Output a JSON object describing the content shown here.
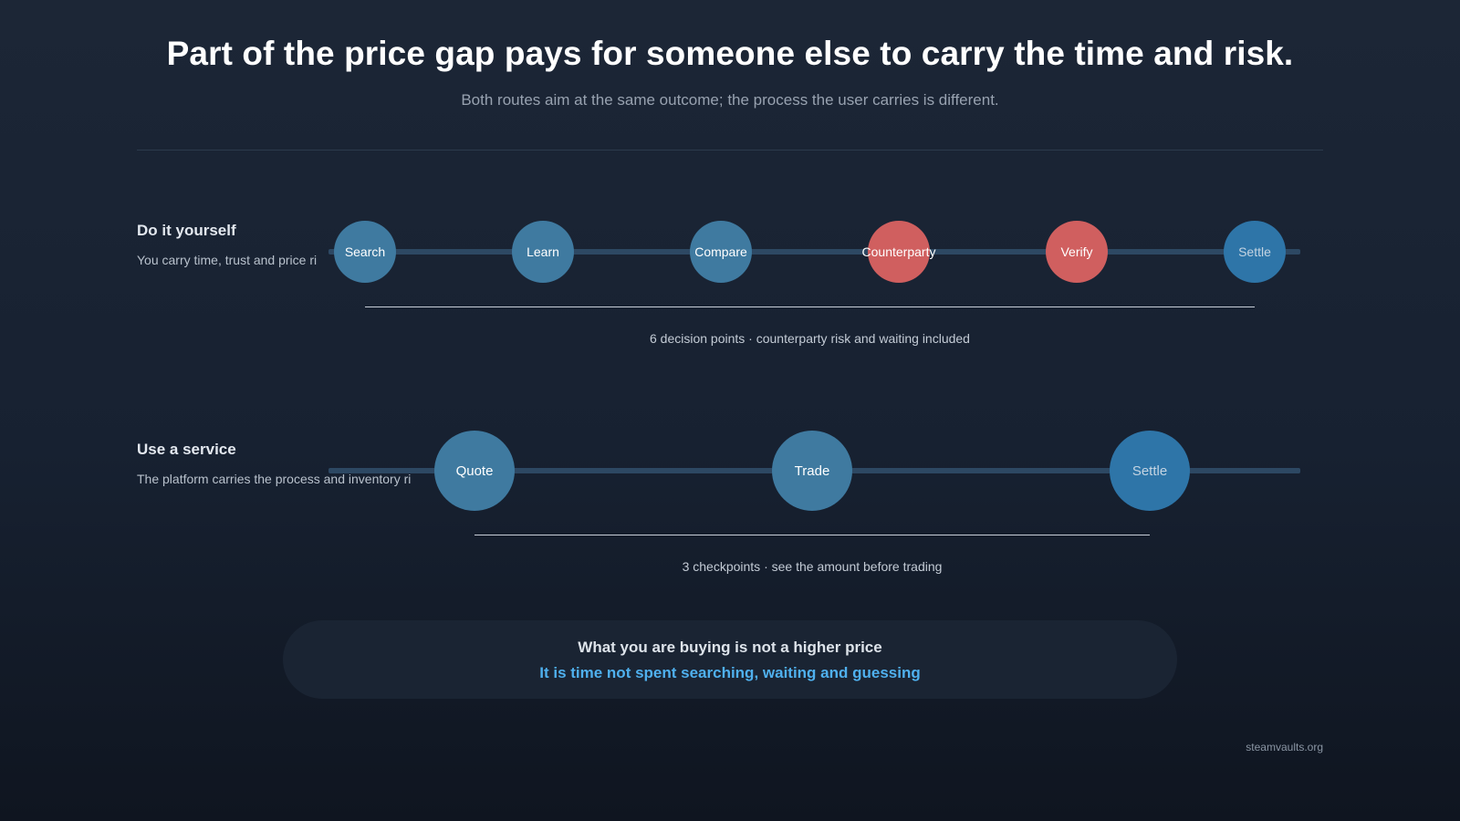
{
  "headline": "Part of the price gap pays for someone else to carry the time and risk.",
  "subheadline": "Both routes aim at the same outcome; the process the user carries is different.",
  "routes": [
    {
      "label": "Do it yourself",
      "description": "You carry time, trust and price ri",
      "steps": [
        {
          "label": "Search",
          "color": "#3f7aa0"
        },
        {
          "label": "Learn",
          "color": "#3f7aa0"
        },
        {
          "label": "Compare",
          "color": "#3f7aa0"
        },
        {
          "label": "Counterparty",
          "color": "#d05f5f"
        },
        {
          "label": "Verify",
          "color": "#d05f5f"
        },
        {
          "label": "Settle",
          "color": "#2e75a8"
        }
      ],
      "summary": "6 decision points · counterparty risk and waiting included"
    },
    {
      "label": "Use a service",
      "description": "The platform carries the process and inventory ri",
      "steps": [
        {
          "label": "Quote",
          "color": "#3f7aa0"
        },
        {
          "label": "Trade",
          "color": "#3f7aa0"
        },
        {
          "label": "Settle",
          "color": "#2e75a8"
        }
      ],
      "summary": "3 checkpoints · see the amount before trading"
    }
  ],
  "callout": {
    "line1": "What you are buying is not a higher price",
    "line2": "It is time not spent searching, waiting and guessing"
  },
  "footer": "steamvaults.org",
  "colors": {
    "background_top": "#1c2636",
    "background_bottom": "#0f1520",
    "track": "#2d4863",
    "step_default": "#3f7aa0",
    "step_risk": "#d05f5f",
    "step_settle": "#2e75a8",
    "accent": "#4fb0ee"
  }
}
